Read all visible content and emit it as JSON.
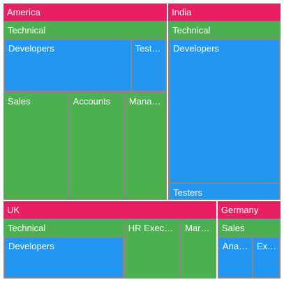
{
  "chart_data": {
    "type": "treemap",
    "colors": {
      "country": "#E91E63",
      "group": "#4CAF50",
      "leaf": "#2196F3"
    },
    "countries": [
      {
        "name": "America",
        "value": 58,
        "groups": [
          {
            "name": "Technical",
            "value": 23,
            "children": [
              {
                "name": "Developers",
                "value": 18
              },
              {
                "name": "Testers",
                "value": 5
              }
            ]
          },
          {
            "name": "Sales",
            "value": 14
          },
          {
            "name": "Accounts",
            "value": 12
          },
          {
            "name": "Management",
            "value": 9
          }
        ]
      },
      {
        "name": "India",
        "value": 40,
        "groups": [
          {
            "name": "Technical",
            "value": 40,
            "children": [
              {
                "name": "Developers",
                "value": 36
              },
              {
                "name": "Testers",
                "value": 4
              }
            ]
          }
        ]
      },
      {
        "name": "UK",
        "value": 30,
        "groups": [
          {
            "name": "Technical",
            "value": 17,
            "children": [
              {
                "name": "Developers",
                "value": 17
              }
            ]
          },
          {
            "name": "HR Executives",
            "value": 8
          },
          {
            "name": "Marketing",
            "value": 5
          }
        ]
      },
      {
        "name": "Germany",
        "value": 9,
        "groups": [
          {
            "name": "Sales",
            "value": 9,
            "children": [
              {
                "name": "Analysts",
                "value": 5
              },
              {
                "name": "Executives",
                "value": 4
              }
            ]
          }
        ]
      }
    ]
  }
}
